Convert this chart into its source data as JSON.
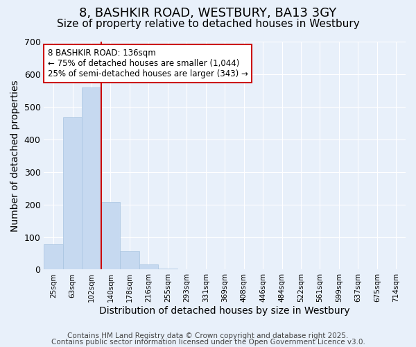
{
  "title": "8, BASHKIR ROAD, WESTBURY, BA13 3GY",
  "subtitle": "Size of property relative to detached houses in Westbury",
  "xlabel": "Distribution of detached houses by size in Westbury",
  "ylabel": "Number of detached properties",
  "bar_values": [
    78,
    467,
    560,
    207,
    57,
    15,
    3,
    0,
    0,
    0,
    0,
    0,
    0,
    0,
    0,
    0,
    0,
    0,
    0
  ],
  "categories": [
    "25sqm",
    "63sqm",
    "102sqm",
    "140sqm",
    "178sqm",
    "216sqm",
    "255sqm",
    "293sqm",
    "331sqm",
    "369sqm",
    "408sqm",
    "446sqm",
    "484sqm",
    "522sqm",
    "561sqm",
    "599sqm",
    "637sqm",
    "675sqm",
    "714sqm"
  ],
  "bar_color": "#c6d9f0",
  "bar_edge_color": "#a8c4e0",
  "vline_x_index": 3,
  "vline_color": "#cc0000",
  "ylim": [
    0,
    700
  ],
  "yticks": [
    0,
    100,
    200,
    300,
    400,
    500,
    600,
    700
  ],
  "annotation_title": "8 BASHKIR ROAD: 136sqm",
  "annotation_line1": "← 75% of detached houses are smaller (1,044)",
  "annotation_line2": "25% of semi-detached houses are larger (343) →",
  "footer1": "Contains HM Land Registry data © Crown copyright and database right 2025.",
  "footer2": "Contains public sector information licensed under the Open Government Licence v3.0.",
  "background_color": "#e8f0fa",
  "plot_background": "#e8f0fa",
  "title_fontsize": 13,
  "subtitle_fontsize": 11,
  "xlabel_fontsize": 10,
  "ylabel_fontsize": 10,
  "footer_fontsize": 7.5
}
